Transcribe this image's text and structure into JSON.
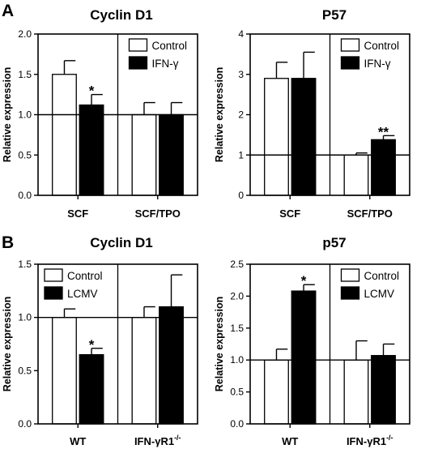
{
  "figure": {
    "panel_a_letter": "A",
    "panel_b_letter": "B"
  },
  "chart_data": [
    {
      "type": "bar",
      "title": "Cyclin D1",
      "ylabel": "Relative expression",
      "ylim": [
        0,
        2.0
      ],
      "yticks": [
        "0.0",
        "0.5",
        "1.0",
        "1.5",
        "2.0"
      ],
      "reference_line": 1.0,
      "categories": [
        "SCF",
        "SCF/TPO"
      ],
      "series": [
        {
          "name": "Control",
          "fill": "#ffffff",
          "values": [
            1.5,
            1.0
          ],
          "errors": [
            0.17,
            0.15
          ]
        },
        {
          "name": "IFN-γ",
          "fill": "#000000",
          "values": [
            1.12,
            1.0
          ],
          "errors": [
            0.13,
            0.15
          ]
        }
      ],
      "annotations": [
        {
          "category": 0,
          "series": 1,
          "text": "*"
        }
      ],
      "legend": "top-right"
    },
    {
      "type": "bar",
      "title": "P57",
      "ylabel": "Relative expression",
      "ylim": [
        0,
        4
      ],
      "yticks": [
        "0",
        "1",
        "2",
        "3",
        "4"
      ],
      "reference_line": 1,
      "categories": [
        "SCF",
        "SCF/TPO"
      ],
      "series": [
        {
          "name": "Control",
          "fill": "#ffffff",
          "values": [
            2.9,
            1.0
          ],
          "errors": [
            0.4,
            0.05
          ]
        },
        {
          "name": "IFN-γ",
          "fill": "#000000",
          "values": [
            2.9,
            1.38
          ],
          "errors": [
            0.65,
            0.1
          ]
        }
      ],
      "annotations": [
        {
          "category": 1,
          "series": 1,
          "text": "**"
        }
      ],
      "legend": "top-right"
    },
    {
      "type": "bar",
      "title": "Cyclin D1",
      "ylabel": "Relative expression",
      "ylim": [
        0,
        1.5
      ],
      "yticks": [
        "0.0",
        "0.5",
        "1.0",
        "1.5"
      ],
      "reference_line": 1.0,
      "categories": [
        "WT",
        "IFN-γR1"
      ],
      "category_superscripts": [
        "",
        "-/-"
      ],
      "series": [
        {
          "name": "Control",
          "fill": "#ffffff",
          "values": [
            1.0,
            1.0
          ],
          "errors": [
            0.08,
            0.1
          ]
        },
        {
          "name": "LCMV",
          "fill": "#000000",
          "values": [
            0.65,
            1.1
          ],
          "errors": [
            0.06,
            0.3
          ]
        }
      ],
      "annotations": [
        {
          "category": 0,
          "series": 1,
          "text": "*"
        }
      ],
      "legend": "top-left"
    },
    {
      "type": "bar",
      "title": "p57",
      "ylabel": "Relative expression",
      "ylim": [
        0,
        2.5
      ],
      "yticks": [
        "0.0",
        "0.5",
        "1.0",
        "1.5",
        "2.0",
        "2.5"
      ],
      "reference_line": 1.0,
      "categories": [
        "WT",
        "IFN-γR1"
      ],
      "category_superscripts": [
        "",
        "-/-"
      ],
      "series": [
        {
          "name": "Control",
          "fill": "#ffffff",
          "values": [
            1.0,
            1.0
          ],
          "errors": [
            0.17,
            0.3
          ]
        },
        {
          "name": "LCMV",
          "fill": "#000000",
          "values": [
            2.08,
            1.07
          ],
          "errors": [
            0.1,
            0.18
          ]
        }
      ],
      "annotations": [
        {
          "category": 0,
          "series": 1,
          "text": "*"
        }
      ],
      "legend": "top-right"
    }
  ]
}
